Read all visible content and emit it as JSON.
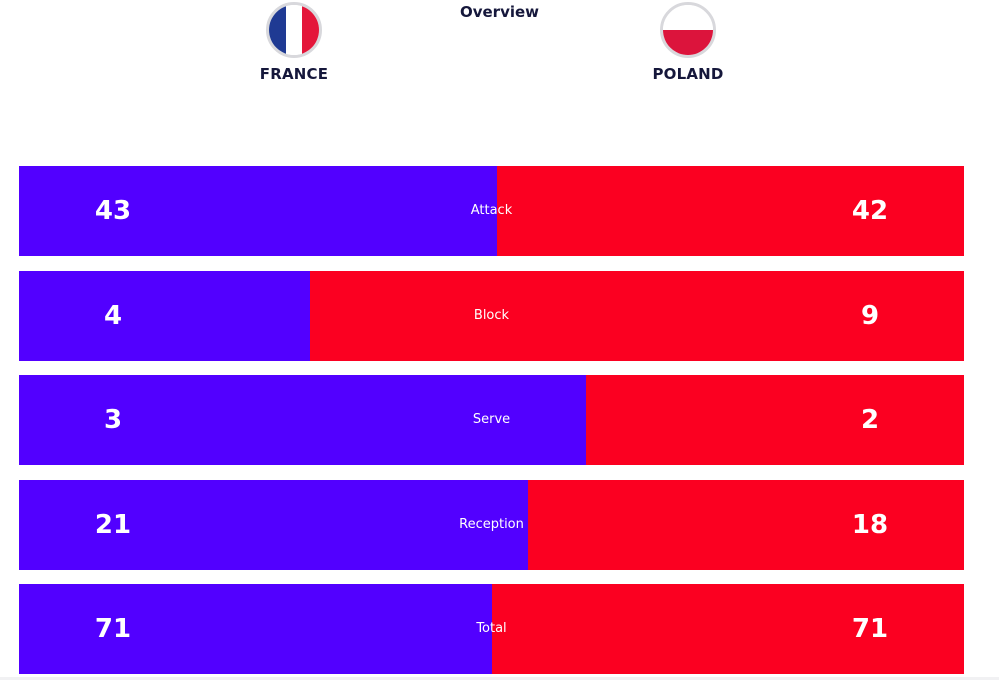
{
  "title": "Overview",
  "teams": {
    "home": {
      "name": "FRANCE",
      "flag_icon": "france-flag-icon",
      "flag_colors": [
        "#1f3a93",
        "#ffffff",
        "#e4163a"
      ]
    },
    "away": {
      "name": "POLAND",
      "flag_icon": "poland-flag-icon",
      "flag_colors": [
        "#ffffff",
        "#dc143c"
      ]
    }
  },
  "colors": {
    "home": "#5200ff",
    "away": "#fb0021"
  },
  "chart_data": {
    "type": "bar",
    "orientation": "horizontal-stacked-100",
    "title": "Overview",
    "categories": [
      "Attack",
      "Block",
      "Serve",
      "Reception",
      "Total"
    ],
    "series": [
      {
        "name": "FRANCE",
        "values": [
          43,
          4,
          3,
          21,
          71
        ]
      },
      {
        "name": "POLAND",
        "values": [
          42,
          9,
          2,
          18,
          71
        ]
      }
    ],
    "legend": "top",
    "grid": false
  }
}
